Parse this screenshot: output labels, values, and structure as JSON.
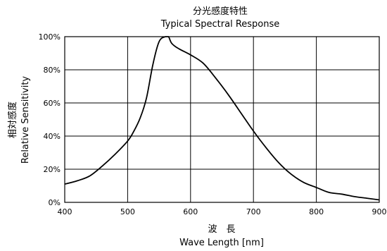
{
  "chart_data": {
    "type": "line",
    "title": "分光感度特性",
    "subtitle": "Typical Spectral Response",
    "xlabel_ja": "波　長",
    "xlabel": "Wave Length [nm]",
    "ylabel_ja": "相対感度",
    "ylabel": "Relative Sensitivity",
    "xlim": [
      400,
      900
    ],
    "ylim": [
      0,
      100
    ],
    "x_ticks": [
      400,
      500,
      600,
      700,
      800,
      900
    ],
    "y_ticks": [
      0,
      20,
      40,
      60,
      80,
      100
    ],
    "x_tick_labels": [
      "400",
      "500",
      "600",
      "700",
      "800",
      "900"
    ],
    "y_tick_labels": [
      "0%",
      "20%",
      "40%",
      "60%",
      "80%",
      "100%"
    ],
    "grid": true,
    "line_color": "#000000",
    "series": [
      {
        "x": [
          400,
          420,
          440,
          460,
          480,
          500,
          510,
          520,
          530,
          540,
          550,
          560,
          565,
          570,
          580,
          600,
          620,
          640,
          660,
          680,
          700,
          720,
          740,
          760,
          780,
          800,
          820,
          840,
          860,
          880,
          900
        ],
        "y": [
          11,
          13,
          16,
          22,
          29,
          37,
          43,
          51,
          63,
          83,
          97,
          100,
          100,
          96,
          93,
          89,
          84,
          75,
          65,
          54,
          43,
          33,
          24,
          17,
          12,
          9,
          6,
          5,
          3.5,
          2.5,
          1.5
        ]
      }
    ]
  }
}
